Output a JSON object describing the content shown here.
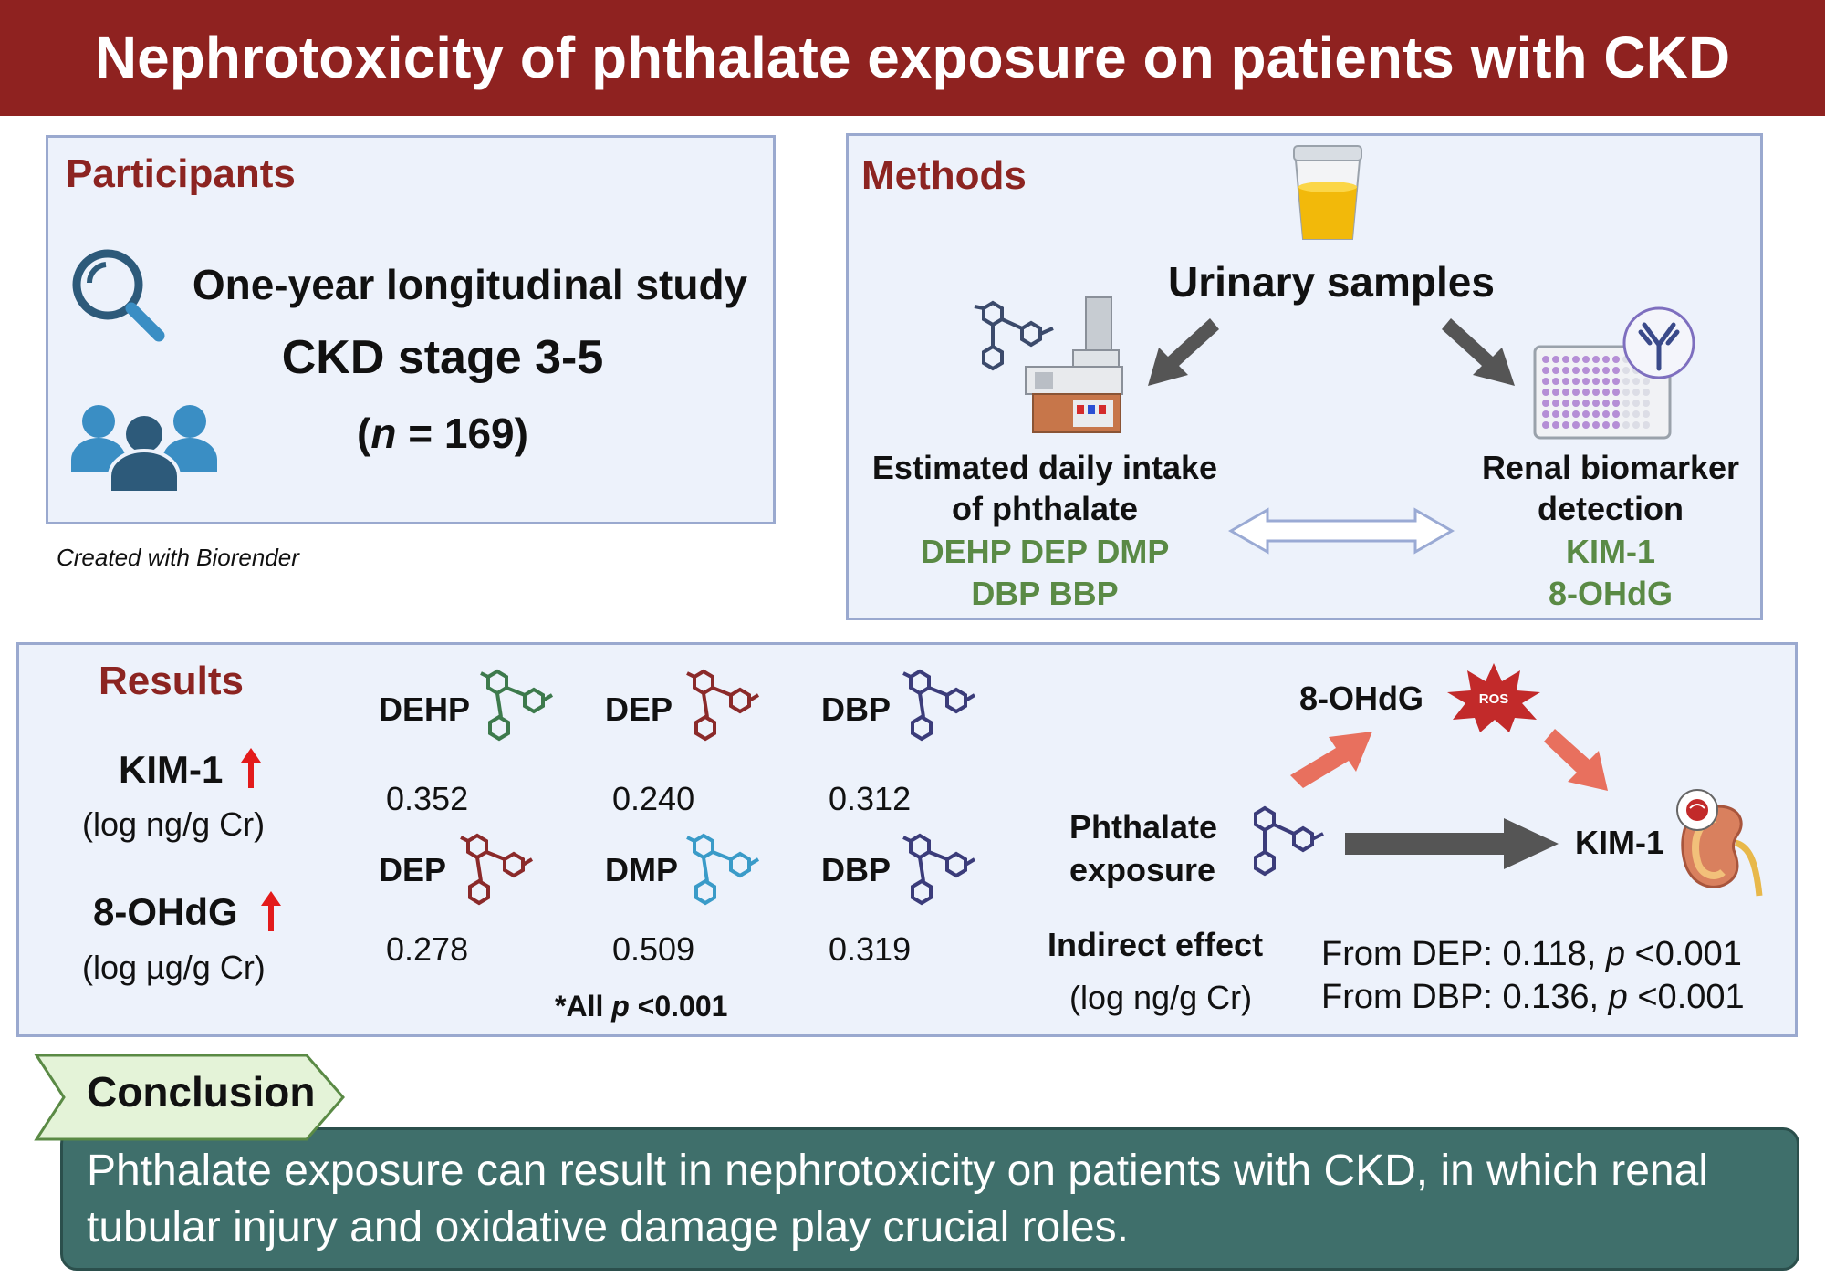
{
  "title": "Nephrotoxicity of phthalate exposure on patients with CKD",
  "participants": {
    "heading": "Participants",
    "study": "One-year longitudinal study",
    "stage": "CKD stage 3-5",
    "n_prefix": "(",
    "n_symbol": "n",
    "n_rest": " = 169)",
    "credit": "Created with Biorender"
  },
  "methods": {
    "heading": "Methods",
    "urinary": "Urinary samples",
    "intake_line1": "Estimated daily intake",
    "intake_line2": "of phthalate",
    "phthalates_line1": "DEHP DEP DMP",
    "phthalates_line2": "DBP BBP",
    "biomarker_line1": "Renal biomarker",
    "biomarker_line2": "detection",
    "biomarker1": "KIM-1",
    "biomarker2": "8-OHdG"
  },
  "results": {
    "heading": "Results",
    "kim1": "KIM-1",
    "kim1_unit": "(log ng/g Cr)",
    "ohdg": "8-OHdG",
    "ohdg_unit": "(log µg/g Cr)",
    "row1": [
      {
        "name": "DEHP",
        "value": "0.352",
        "color": "#3d7a4c"
      },
      {
        "name": "DEP",
        "value": "0.240",
        "color": "#8b2a2a"
      },
      {
        "name": "DBP",
        "value": "0.312",
        "color": "#3b3c7a"
      }
    ],
    "row2": [
      {
        "name": "DEP",
        "value": "0.278",
        "color": "#8b2a2a"
      },
      {
        "name": "DMP",
        "value": "0.509",
        "color": "#3a9bc8"
      },
      {
        "name": "DBP",
        "value": "0.319",
        "color": "#3b3c7a"
      }
    ],
    "all_p_prefix": "*All ",
    "all_p_symbol": "p",
    "all_p_rest": " <0.001",
    "pathway": {
      "ohdg": "8-OHdG",
      "ros": "ROS",
      "exposure_line1": "Phthalate",
      "exposure_line2": "exposure",
      "kim1": "KIM-1",
      "indirect": "Indirect effect",
      "indirect_unit": "(log ng/g Cr)",
      "from_dep": "From DEP: 0.118, ",
      "from_dbp": "From DBP: 0.136, ",
      "p_symbol": "p",
      "p_rest": " <0.001"
    }
  },
  "conclusion": {
    "label": "Conclusion",
    "text": "Phthalate exposure can result in nephrotoxicity on patients with CKD, in which renal tubular injury and oxidative damage play crucial roles."
  },
  "colors": {
    "title_bg": "#8f2220",
    "heading": "#8c2421",
    "green_text": "#5a8a45",
    "conclusion_bg": "#3f6f6b",
    "up_arrow": "#e31b1b",
    "salmon_arrow": "#e8705e",
    "gray_arrow": "#555555"
  }
}
